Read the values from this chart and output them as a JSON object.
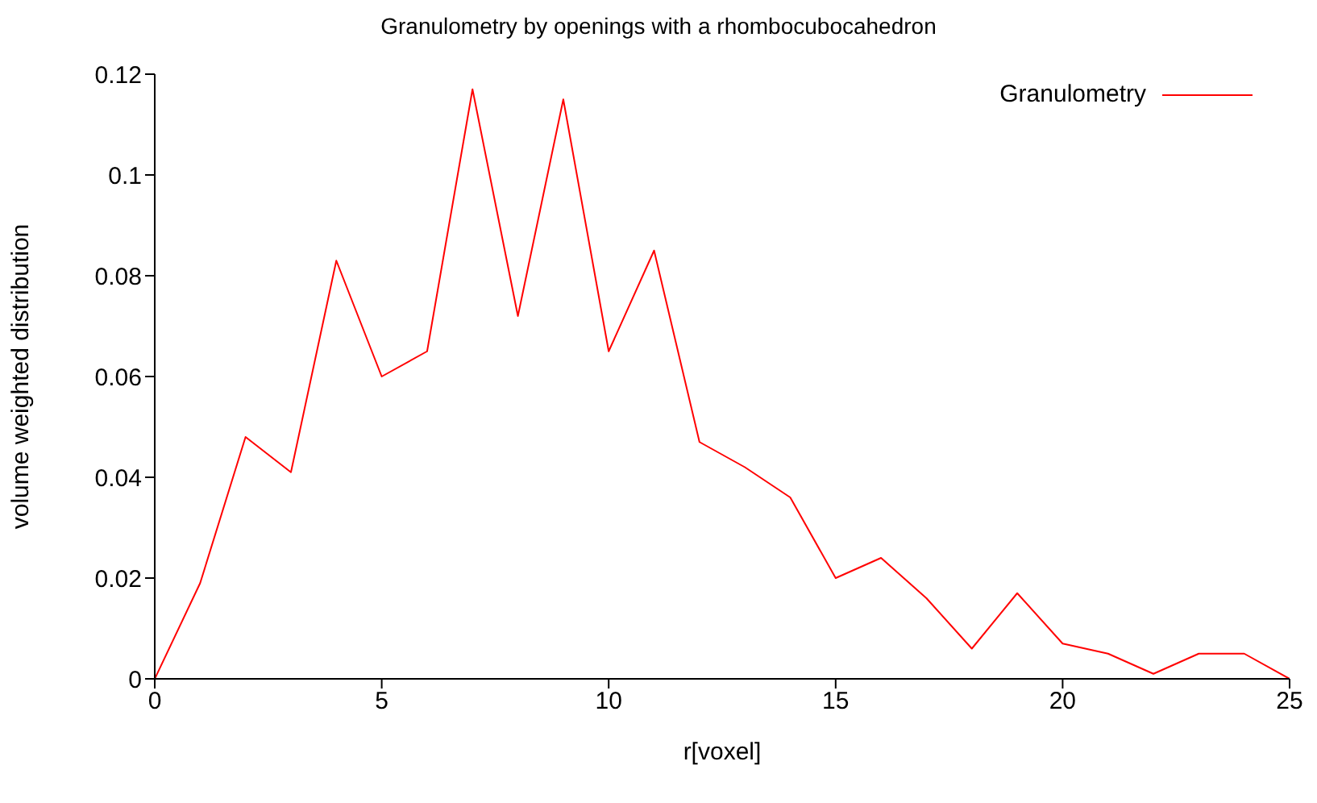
{
  "chart_data": {
    "type": "line",
    "title": "Granulometry by openings with a rhombocubocahedron",
    "xlabel": "r[voxel]",
    "ylabel": "volume weighted distribution",
    "x": [
      0,
      1,
      2,
      3,
      4,
      5,
      6,
      7,
      8,
      9,
      10,
      11,
      12,
      13,
      14,
      15,
      16,
      17,
      18,
      19,
      20,
      21,
      22,
      23,
      24,
      25
    ],
    "series": [
      {
        "name": "Granulometry",
        "color": "#ff0000",
        "values": [
          0,
          0.019,
          0.048,
          0.041,
          0.083,
          0.06,
          0.065,
          0.117,
          0.072,
          0.115,
          0.065,
          0.085,
          0.047,
          0.042,
          0.036,
          0.02,
          0.024,
          0.016,
          0.006,
          0.017,
          0.007,
          0.005,
          0.001,
          0.005,
          0.005,
          0
        ]
      }
    ],
    "xlim": [
      0,
      25
    ],
    "xticks": [
      0,
      5,
      10,
      15,
      20,
      25
    ],
    "ylim": [
      0,
      0.12
    ],
    "yticks": [
      0,
      0.02,
      0.04,
      0.06,
      0.08,
      0.1,
      0.12
    ],
    "grid": false,
    "legend": "top right",
    "marker": "none",
    "line_style": "solid"
  }
}
